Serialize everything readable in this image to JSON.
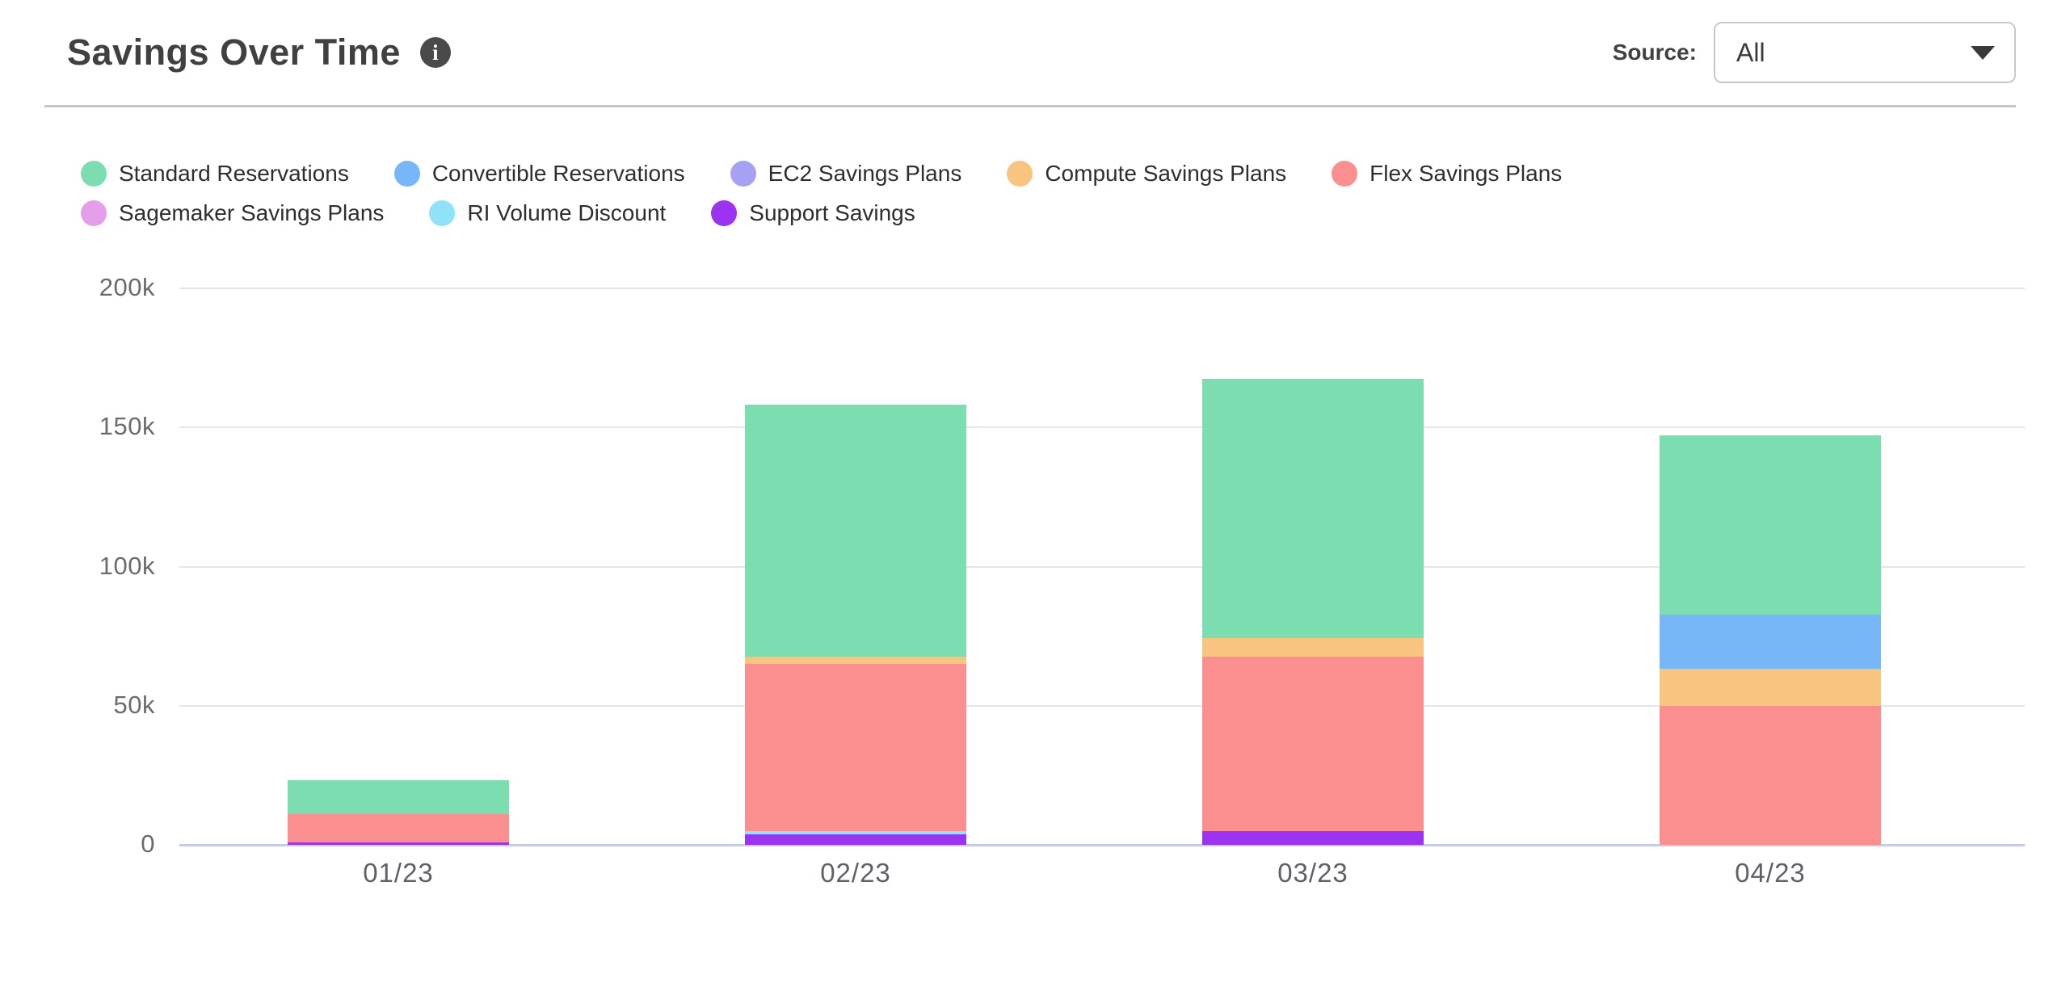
{
  "header": {
    "title": "Savings Over Time",
    "source_label": "Source:",
    "source_value": "All"
  },
  "chart_data": {
    "type": "bar",
    "stacked": true,
    "title": "Savings Over Time",
    "categories": [
      "01/23",
      "02/23",
      "03/23",
      "04/23"
    ],
    "series": [
      {
        "name": "Standard Reservations",
        "color": "#7CDEB0",
        "values": [
          12300,
          90500,
          93300,
          64600
        ]
      },
      {
        "name": "Convertible Reservations",
        "color": "#77B7F7",
        "values": [
          0,
          0,
          0,
          19300
        ]
      },
      {
        "name": "EC2 Savings Plans",
        "color": "#A7A1F4",
        "values": [
          0,
          0,
          0,
          0
        ]
      },
      {
        "name": "Compute Savings Plans",
        "color": "#F7C57F",
        "values": [
          0,
          2600,
          6600,
          13600
        ]
      },
      {
        "name": "Flex Savings Plans",
        "color": "#FB8F8F",
        "values": [
          10200,
          60200,
          62600,
          49800
        ]
      },
      {
        "name": "Sagemaker Savings Plans",
        "color": "#E59FEA",
        "values": [
          0,
          0,
          0,
          0
        ]
      },
      {
        "name": "RI Volume Discount",
        "color": "#8EE3F8",
        "values": [
          0,
          1000,
          0,
          0
        ]
      },
      {
        "name": "Support Savings",
        "color": "#9C33F0",
        "values": [
          800,
          3800,
          5000,
          0
        ]
      }
    ],
    "stack_order": "bottom-to-top is reverse of series list",
    "y_ticks": [
      {
        "value": 0,
        "label": "0"
      },
      {
        "value": 50000,
        "label": "50k"
      },
      {
        "value": 100000,
        "label": "100k"
      },
      {
        "value": 150000,
        "label": "150k"
      },
      {
        "value": 200000,
        "label": "200k"
      }
    ],
    "ylim": [
      0,
      200000
    ],
    "grid": true,
    "legend_position": "top",
    "legend_rows": [
      5,
      3
    ]
  }
}
